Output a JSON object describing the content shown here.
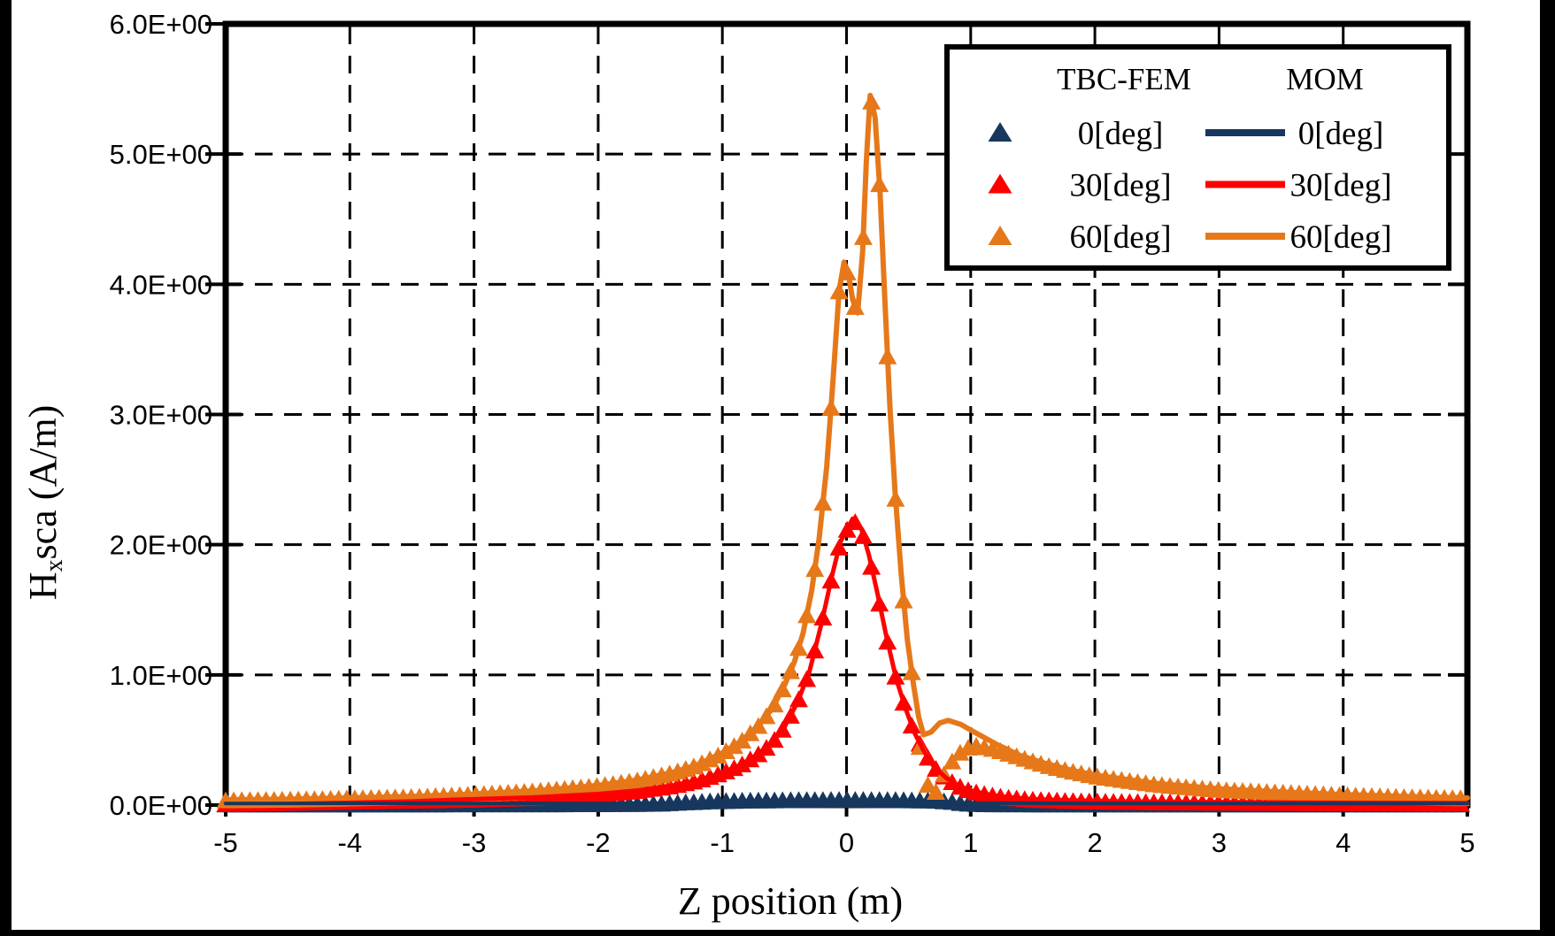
{
  "figure": {
    "background": "#FFFFFF",
    "frame_color": "#000000",
    "grid_color": "#000000",
    "edge_band_color": "#000000"
  },
  "chart_data": {
    "type": "line+scatter",
    "title": "",
    "xlabel": "Z position  (m)",
    "ylabel": {
      "prefix": "H",
      "sub": "x",
      "suffix": "sca (A/m)"
    },
    "xlim": [
      -5,
      5
    ],
    "ylim": [
      0,
      6
    ],
    "grid": "dashed",
    "x_ticks": {
      "values": [
        -5,
        -4,
        -3,
        -2,
        -1,
        0,
        1,
        2,
        3,
        4,
        5
      ],
      "labels": [
        "-5",
        "-4",
        "-3",
        "-2",
        "-1",
        "0",
        "1",
        "2",
        "3",
        "4",
        "5"
      ]
    },
    "y_ticks": {
      "values": [
        0,
        1,
        2,
        3,
        4,
        5,
        6
      ],
      "labels": [
        "0.0E+00",
        "1.0E+00",
        "2.0E+00",
        "3.0E+00",
        "4.0E+00",
        "5.0E+00",
        "6.0E+00"
      ]
    },
    "legend": {
      "position": "top-right",
      "col1_header": "TBC-FEM",
      "col2_header": "MOM",
      "rows": [
        {
          "label": "0[deg]",
          "color": "#17375E"
        },
        {
          "label": "30[deg]",
          "color": "#FE0000"
        },
        {
          "label": "60[deg]",
          "color": "#E6781A"
        }
      ]
    },
    "marker": {
      "shape": "triangle-up",
      "width": 21,
      "height": 19,
      "x_step": 0.065
    },
    "series": [
      {
        "id": "fem-0",
        "name": "TBC-FEM 0[deg]",
        "render": "markers",
        "color": "#17375E",
        "points": [
          [
            -5,
            0.008
          ],
          [
            -2,
            0.01
          ],
          [
            -1.5,
            0.014
          ],
          [
            -1.3,
            0.024
          ],
          [
            -1.1,
            0.032
          ],
          [
            -0.8,
            0.038
          ],
          [
            -0.4,
            0.042
          ],
          [
            0,
            0.044
          ],
          [
            0.4,
            0.042
          ],
          [
            0.7,
            0.038
          ],
          [
            0.85,
            0.028
          ],
          [
            0.95,
            0.015
          ],
          [
            1.1,
            0.01
          ],
          [
            2,
            0.008
          ],
          [
            5,
            0.008
          ]
        ]
      },
      {
        "id": "fem-30",
        "name": "TBC-FEM 30[deg]",
        "render": "markers",
        "color": "#FE0000",
        "points": [
          [
            -5,
            0.012
          ],
          [
            -4,
            0.03
          ],
          [
            -3,
            0.045
          ],
          [
            -2.5,
            0.06
          ],
          [
            -2,
            0.085
          ],
          [
            -1.7,
            0.11
          ],
          [
            -1.4,
            0.15
          ],
          [
            -1.2,
            0.19
          ],
          [
            -1,
            0.25
          ],
          [
            -0.85,
            0.31
          ],
          [
            -0.7,
            0.4
          ],
          [
            -0.6,
            0.48
          ],
          [
            -0.5,
            0.6
          ],
          [
            -0.4,
            0.78
          ],
          [
            -0.3,
            1.02
          ],
          [
            -0.2,
            1.4
          ],
          [
            -0.12,
            1.75
          ],
          [
            -0.05,
            2.02
          ],
          [
            0.05,
            2.2
          ],
          [
            0.12,
            2.12
          ],
          [
            0.18,
            1.92
          ],
          [
            0.25,
            1.62
          ],
          [
            0.32,
            1.3
          ],
          [
            0.4,
            0.97
          ],
          [
            0.48,
            0.73
          ],
          [
            0.55,
            0.55
          ],
          [
            0.62,
            0.42
          ],
          [
            0.7,
            0.3
          ],
          [
            0.8,
            0.21
          ],
          [
            0.9,
            0.15
          ],
          [
            1,
            0.11
          ],
          [
            1.15,
            0.08
          ],
          [
            1.3,
            0.06
          ],
          [
            1.5,
            0.045
          ],
          [
            1.8,
            0.035
          ],
          [
            2.2,
            0.028
          ],
          [
            3,
            0.022
          ],
          [
            4,
            0.018
          ],
          [
            5,
            0.015
          ]
        ]
      },
      {
        "id": "fem-60",
        "name": "TBC-FEM 60[deg]",
        "render": "markers",
        "color": "#E6781A",
        "points": [
          [
            -5,
            0.04
          ],
          [
            -4.5,
            0.045
          ],
          [
            -4,
            0.055
          ],
          [
            -3.5,
            0.065
          ],
          [
            -3,
            0.085
          ],
          [
            -2.5,
            0.11
          ],
          [
            -2,
            0.15
          ],
          [
            -1.7,
            0.19
          ],
          [
            -1.4,
            0.25
          ],
          [
            -1.2,
            0.31
          ],
          [
            -1,
            0.4
          ],
          [
            -0.85,
            0.49
          ],
          [
            -0.7,
            0.62
          ],
          [
            -0.6,
            0.74
          ],
          [
            -0.5,
            0.92
          ],
          [
            -0.42,
            1.1
          ],
          [
            -0.35,
            1.32
          ],
          [
            -0.28,
            1.65
          ],
          [
            -0.22,
            2.05
          ],
          [
            -0.16,
            2.6
          ],
          [
            -0.11,
            3.25
          ],
          [
            -0.06,
            3.95
          ],
          [
            -0.02,
            4.17
          ],
          [
            0.02,
            4.05
          ],
          [
            0.05,
            3.88
          ],
          [
            0.09,
            3.78
          ],
          [
            0.13,
            4.25
          ],
          [
            0.16,
            4.95
          ],
          [
            0.19,
            5.45
          ],
          [
            0.23,
            5.28
          ],
          [
            0.27,
            4.7
          ],
          [
            0.31,
            3.85
          ],
          [
            0.35,
            3.05
          ],
          [
            0.39,
            2.42
          ],
          [
            0.44,
            1.78
          ],
          [
            0.49,
            1.27
          ],
          [
            0.54,
            0.92
          ],
          [
            0.58,
            0.5
          ],
          [
            0.62,
            0.3
          ],
          [
            0.66,
            0.14
          ],
          [
            0.7,
            0.06
          ],
          [
            0.74,
            0.15
          ],
          [
            0.8,
            0.27
          ],
          [
            0.88,
            0.38
          ],
          [
            0.96,
            0.44
          ],
          [
            1.05,
            0.46
          ],
          [
            1.2,
            0.43
          ],
          [
            1.4,
            0.37
          ],
          [
            1.6,
            0.31
          ],
          [
            1.8,
            0.265
          ],
          [
            2,
            0.225
          ],
          [
            2.5,
            0.16
          ],
          [
            3,
            0.12
          ],
          [
            3.5,
            0.1
          ],
          [
            4,
            0.08
          ],
          [
            4.5,
            0.065
          ],
          [
            5,
            0.055
          ]
        ]
      },
      {
        "id": "mom-30",
        "name": "MOM 30[deg]",
        "render": "line",
        "color": "#FE0000",
        "width": 5,
        "points": [
          [
            -5,
            0.02
          ],
          [
            -4,
            0.03
          ],
          [
            -3,
            0.045
          ],
          [
            -2.5,
            0.06
          ],
          [
            -2,
            0.085
          ],
          [
            -1.7,
            0.11
          ],
          [
            -1.4,
            0.15
          ],
          [
            -1.2,
            0.19
          ],
          [
            -1,
            0.25
          ],
          [
            -0.85,
            0.31
          ],
          [
            -0.7,
            0.4
          ],
          [
            -0.6,
            0.48
          ],
          [
            -0.5,
            0.6
          ],
          [
            -0.4,
            0.78
          ],
          [
            -0.3,
            1.02
          ],
          [
            -0.2,
            1.4
          ],
          [
            -0.12,
            1.75
          ],
          [
            -0.05,
            2.02
          ],
          [
            0.05,
            2.2
          ],
          [
            0.12,
            2.12
          ],
          [
            0.18,
            1.92
          ],
          [
            0.25,
            1.62
          ],
          [
            0.32,
            1.3
          ],
          [
            0.4,
            0.97
          ],
          [
            0.48,
            0.73
          ],
          [
            0.55,
            0.55
          ],
          [
            0.62,
            0.42
          ],
          [
            0.7,
            0.3
          ],
          [
            0.8,
            0.21
          ],
          [
            0.9,
            0.15
          ],
          [
            1,
            0.11
          ],
          [
            1.15,
            0.08
          ],
          [
            1.3,
            0.06
          ],
          [
            1.5,
            0.045
          ],
          [
            1.8,
            0.035
          ],
          [
            2.2,
            0.028
          ],
          [
            3,
            0.022
          ],
          [
            4,
            0.018
          ],
          [
            5,
            0.015
          ]
        ]
      },
      {
        "id": "mom-60",
        "name": "MOM 60[deg]",
        "render": "line",
        "color": "#E6781A",
        "width": 6,
        "points": [
          [
            -5,
            0.04
          ],
          [
            -4.5,
            0.045
          ],
          [
            -4,
            0.055
          ],
          [
            -3.5,
            0.065
          ],
          [
            -3,
            0.085
          ],
          [
            -2.5,
            0.11
          ],
          [
            -2,
            0.15
          ],
          [
            -1.7,
            0.19
          ],
          [
            -1.4,
            0.25
          ],
          [
            -1.2,
            0.31
          ],
          [
            -1,
            0.4
          ],
          [
            -0.85,
            0.49
          ],
          [
            -0.7,
            0.62
          ],
          [
            -0.6,
            0.74
          ],
          [
            -0.5,
            0.92
          ],
          [
            -0.42,
            1.1
          ],
          [
            -0.35,
            1.32
          ],
          [
            -0.28,
            1.65
          ],
          [
            -0.22,
            2.05
          ],
          [
            -0.16,
            2.6
          ],
          [
            -0.11,
            3.25
          ],
          [
            -0.06,
            3.95
          ],
          [
            -0.02,
            4.17
          ],
          [
            0.02,
            4.05
          ],
          [
            0.05,
            3.88
          ],
          [
            0.09,
            3.78
          ],
          [
            0.13,
            4.25
          ],
          [
            0.16,
            4.95
          ],
          [
            0.19,
            5.45
          ],
          [
            0.23,
            5.28
          ],
          [
            0.27,
            4.7
          ],
          [
            0.31,
            3.85
          ],
          [
            0.35,
            3.05
          ],
          [
            0.39,
            2.42
          ],
          [
            0.44,
            1.78
          ],
          [
            0.49,
            1.27
          ],
          [
            0.54,
            0.92
          ],
          [
            0.58,
            0.68
          ],
          [
            0.62,
            0.54
          ],
          [
            0.68,
            0.56
          ],
          [
            0.75,
            0.63
          ],
          [
            0.82,
            0.65
          ],
          [
            0.92,
            0.62
          ],
          [
            1.05,
            0.55
          ],
          [
            1.2,
            0.47
          ],
          [
            1.4,
            0.38
          ],
          [
            1.6,
            0.32
          ],
          [
            1.8,
            0.27
          ],
          [
            2,
            0.23
          ],
          [
            2.5,
            0.165
          ],
          [
            3,
            0.125
          ],
          [
            3.5,
            0.1
          ],
          [
            4,
            0.08
          ],
          [
            4.5,
            0.065
          ],
          [
            5,
            0.055
          ]
        ]
      },
      {
        "id": "mom-0",
        "name": "MOM 0[deg]",
        "render": "line",
        "color": "#17375E",
        "width": 4,
        "points": [
          [
            -5,
            0.012
          ],
          [
            -2,
            0.013
          ],
          [
            -1,
            0.016
          ],
          [
            0,
            0.02
          ],
          [
            1,
            0.015
          ],
          [
            2,
            0.012
          ],
          [
            5,
            0.012
          ]
        ]
      }
    ]
  }
}
